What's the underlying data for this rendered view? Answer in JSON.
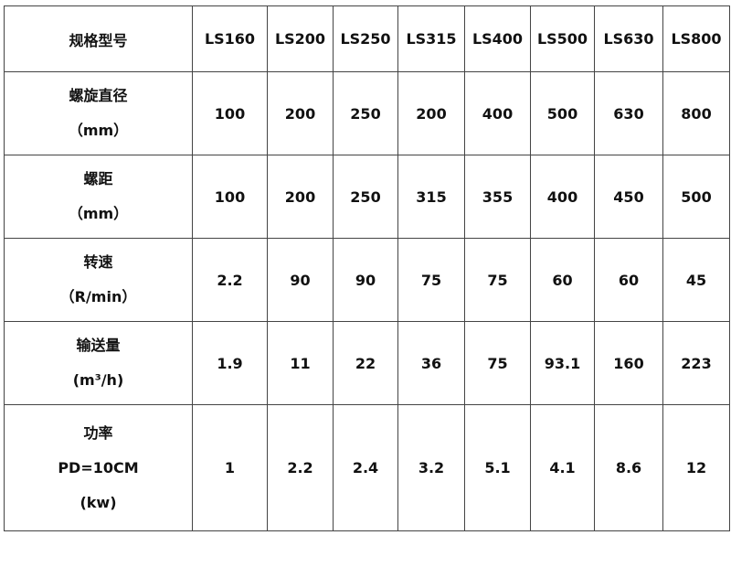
{
  "table": {
    "header": {
      "label": "规格型号",
      "models": [
        "LS160",
        "LS200",
        "LS250",
        "LS315",
        "LS400",
        "LS500",
        "LS630",
        "LS800"
      ]
    },
    "rows": [
      {
        "label_lines": [
          "螺旋直径",
          "（mm）"
        ],
        "values": [
          "100",
          "200",
          "250",
          "200",
          "400",
          "500",
          "630",
          "800"
        ]
      },
      {
        "label_lines": [
          "螺距",
          "（mm）"
        ],
        "values": [
          "100",
          "200",
          "250",
          "315",
          "355",
          "400",
          "450",
          "500"
        ]
      },
      {
        "label_lines": [
          "转速",
          "（R/min）"
        ],
        "values": [
          "2.2",
          "90",
          "90",
          "75",
          "75",
          "60",
          "60",
          "45"
        ]
      },
      {
        "label_lines": [
          "输送量",
          "(m³/h)"
        ],
        "values": [
          "1.9",
          "11",
          "22",
          "36",
          "75",
          "93.1",
          "160",
          "223"
        ]
      },
      {
        "label_lines": [
          "功率",
          "PD=10CM",
          "(kw)"
        ],
        "values": [
          "1",
          "2.2",
          "2.4",
          "3.2",
          "5.1",
          "4.1",
          "8.6",
          "12"
        ]
      }
    ]
  }
}
